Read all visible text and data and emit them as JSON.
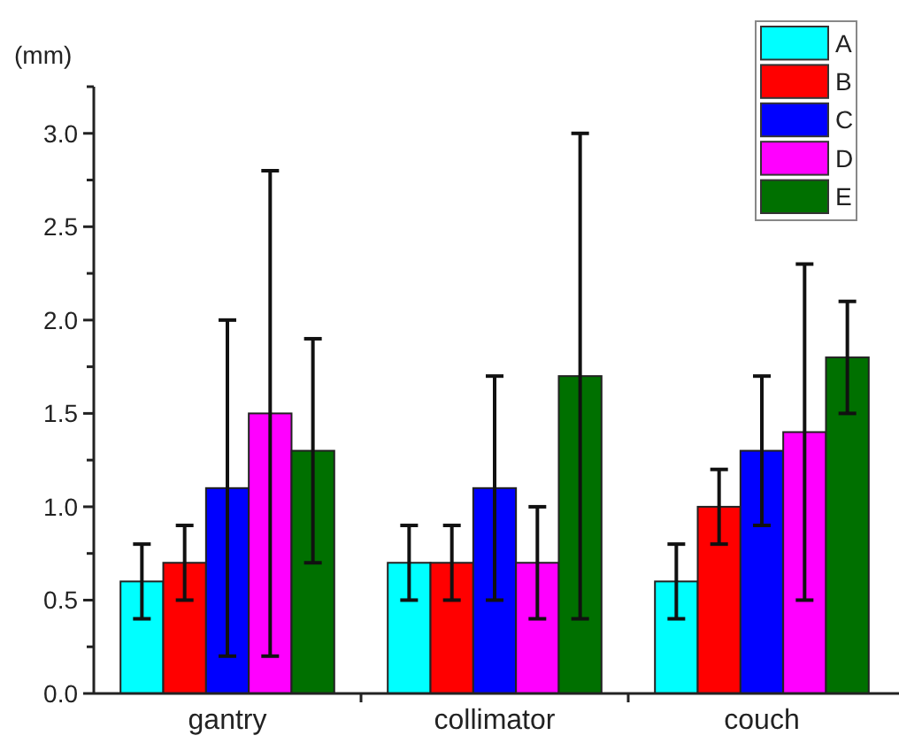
{
  "chart_data": {
    "type": "bar",
    "ylabel": "(mm)",
    "categories": [
      "gantry",
      "collimator",
      "couch"
    ],
    "series": [
      {
        "name": "A",
        "color": "#00ffff",
        "values": [
          0.6,
          0.7,
          0.6
        ],
        "errors": [
          [
            0.4,
            0.8
          ],
          [
            0.5,
            0.9
          ],
          [
            0.4,
            0.8
          ]
        ]
      },
      {
        "name": "B",
        "color": "#ff0000",
        "values": [
          0.7,
          0.7,
          1.0
        ],
        "errors": [
          [
            0.5,
            0.9
          ],
          [
            0.5,
            0.9
          ],
          [
            0.8,
            1.2
          ]
        ]
      },
      {
        "name": "C",
        "color": "#0000ff",
        "values": [
          1.1,
          1.1,
          1.3
        ],
        "errors": [
          [
            0.2,
            2.0
          ],
          [
            0.5,
            1.7
          ],
          [
            0.9,
            1.7
          ]
        ]
      },
      {
        "name": "D",
        "color": "#ff00ff",
        "values": [
          1.5,
          0.7,
          1.4
        ],
        "errors": [
          [
            0.2,
            2.8
          ],
          [
            0.4,
            1.0
          ],
          [
            0.5,
            2.3
          ]
        ]
      },
      {
        "name": "E",
        "color": "#007000",
        "values": [
          1.3,
          1.7,
          1.8
        ],
        "errors": [
          [
            0.7,
            1.9
          ],
          [
            0.4,
            3.0
          ],
          [
            1.5,
            2.1
          ]
        ]
      }
    ],
    "ylim": [
      0,
      3.25
    ],
    "yticks": [
      {
        "value": 0,
        "label": "0.0"
      },
      {
        "value": 0.25,
        "label": null
      },
      {
        "value": 0.5,
        "label": "0.5"
      },
      {
        "value": 0.75,
        "label": null
      },
      {
        "value": 1,
        "label": "1.0"
      },
      {
        "value": 1.25,
        "label": null
      },
      {
        "value": 1.5,
        "label": "1.5"
      },
      {
        "value": 1.75,
        "label": null
      },
      {
        "value": 2,
        "label": "2.0"
      },
      {
        "value": 2.25,
        "label": null
      },
      {
        "value": 2.5,
        "label": "2.5"
      },
      {
        "value": 2.75,
        "label": null
      },
      {
        "value": 3,
        "label": "3.0"
      },
      {
        "value": 3.25,
        "label": null
      }
    ],
    "grid": false,
    "legend": "top right"
  }
}
